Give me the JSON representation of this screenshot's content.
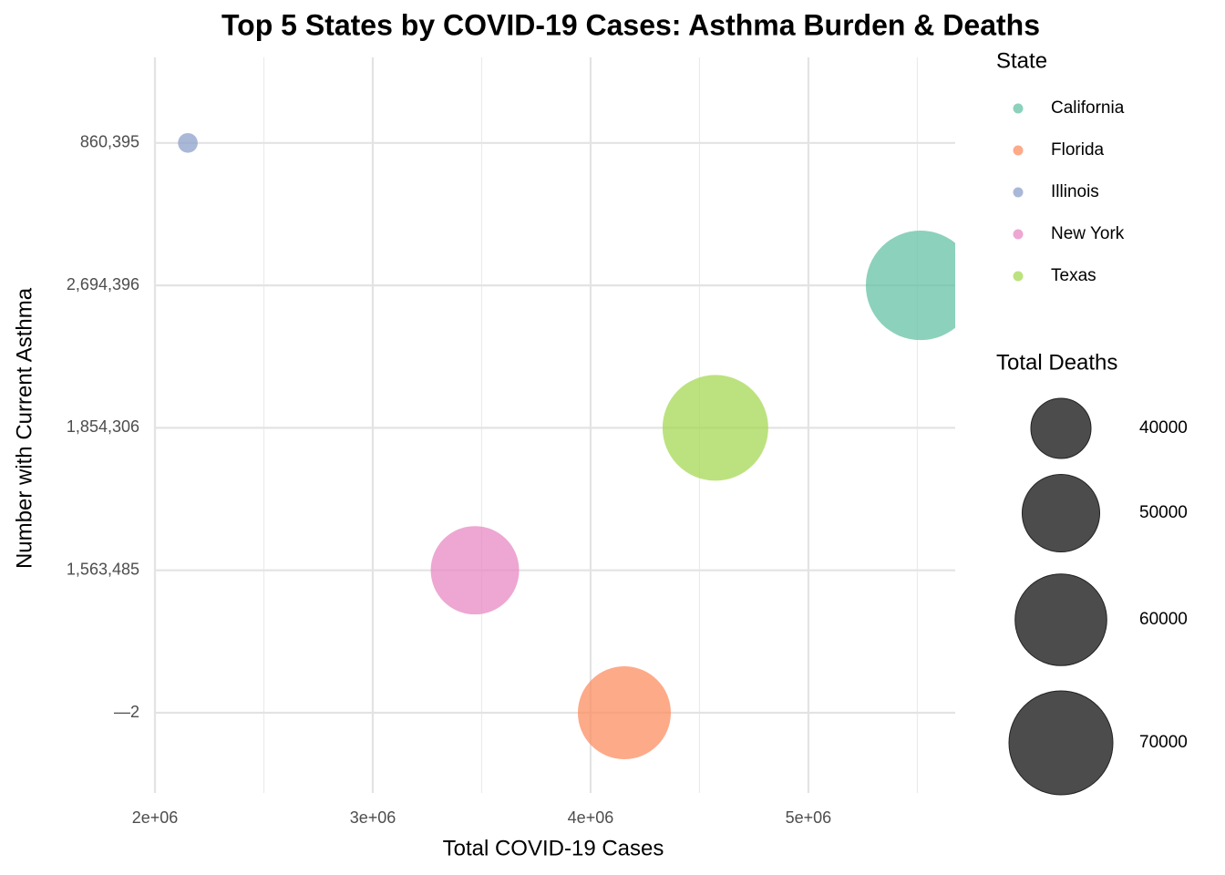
{
  "chart_data": {
    "type": "bubble",
    "title": "Top 5 States by COVID-19 Cases: Asthma Burden & Deaths",
    "x_label": "Total COVID-19 Cases",
    "y_label": "Number with Current Asthma",
    "categories": [
      "—2",
      "1,563,485",
      "1,854,306",
      "2,694,396",
      "860,395"
    ],
    "xlim": [
      2000000,
      5674000
    ],
    "xticks": [
      {
        "value": 2000000,
        "label": "2e+06"
      },
      {
        "value": 3000000,
        "label": "3e+06"
      },
      {
        "value": 4000000,
        "label": "4e+06"
      },
      {
        "value": 5000000,
        "label": "5e+06"
      }
    ],
    "grid": true,
    "color_legend_title": "State",
    "size_legend_title": "Total Deaths",
    "size_legend": [
      40000,
      50000,
      60000,
      70000
    ],
    "series": [
      {
        "name": "California",
        "color": "#66c2a5",
        "x": [
          5515000
        ],
        "y": [
          "2,694,396"
        ],
        "size": [
          75000
        ]
      },
      {
        "name": "Florida",
        "color": "#fc8d62",
        "x": [
          4155000
        ],
        "y": [
          "—2"
        ],
        "size": [
          61000
        ]
      },
      {
        "name": "Illinois",
        "color": "#8da0cb",
        "x": [
          2151000
        ],
        "y": [
          "860,395"
        ],
        "size": [
          26500
        ]
      },
      {
        "name": "New York",
        "color": "#e78ac3",
        "x": [
          3469000
        ],
        "y": [
          "1,563,485"
        ],
        "size": [
          57500
        ]
      },
      {
        "name": "Texas",
        "color": "#a6d854",
        "x": [
          4573000
        ],
        "y": [
          "1,854,306"
        ],
        "size": [
          71600
        ]
      }
    ]
  }
}
